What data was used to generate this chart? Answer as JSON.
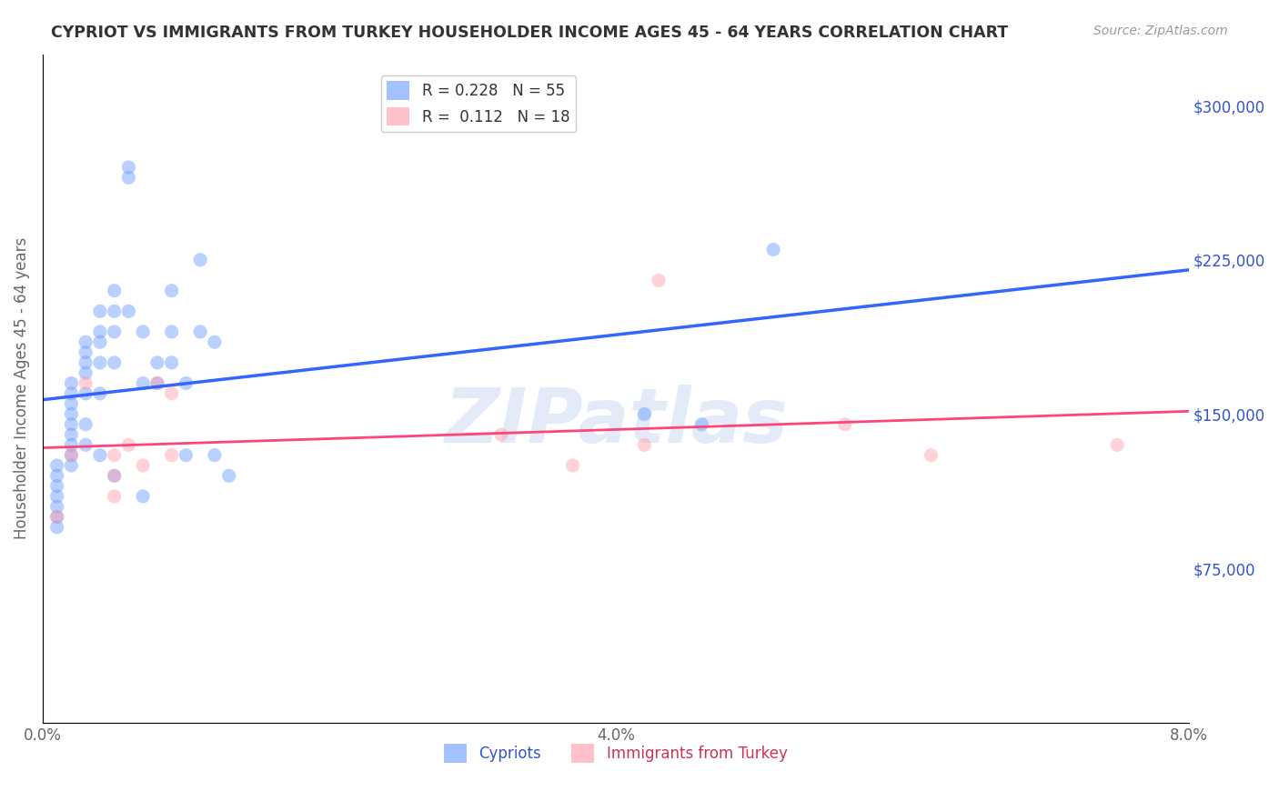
{
  "title": "CYPRIOT VS IMMIGRANTS FROM TURKEY HOUSEHOLDER INCOME AGES 45 - 64 YEARS CORRELATION CHART",
  "source": "Source: ZipAtlas.com",
  "xlabel_bottom": "",
  "ylabel": "Householder Income Ages 45 - 64 years",
  "xlim": [
    0.0,
    0.08
  ],
  "ylim": [
    0,
    325000
  ],
  "yticks": [
    0,
    75000,
    150000,
    225000,
    300000
  ],
  "ytick_labels": [
    "",
    "$75,000",
    "$150,000",
    "$225,000",
    "$300,000"
  ],
  "xtick_labels": [
    "0.0%",
    "",
    "",
    "",
    "4.0%",
    "",
    "",
    "",
    "8.0%"
  ],
  "background_color": "#ffffff",
  "grid_color": "#cccccc",
  "title_color": "#333333",
  "source_color": "#999999",
  "blue_color": "#6699ff",
  "pink_color": "#ff99aa",
  "legend_R_blue": "0.228",
  "legend_N_blue": "55",
  "legend_R_pink": "0.112",
  "legend_N_pink": "18",
  "cypriot_x": [
    0.001,
    0.001,
    0.001,
    0.001,
    0.001,
    0.001,
    0.001,
    0.002,
    0.002,
    0.002,
    0.002,
    0.002,
    0.002,
    0.002,
    0.002,
    0.002,
    0.003,
    0.003,
    0.003,
    0.003,
    0.003,
    0.003,
    0.003,
    0.004,
    0.004,
    0.004,
    0.004,
    0.004,
    0.004,
    0.005,
    0.005,
    0.005,
    0.005,
    0.005,
    0.006,
    0.006,
    0.006,
    0.007,
    0.007,
    0.007,
    0.008,
    0.008,
    0.009,
    0.009,
    0.009,
    0.01,
    0.01,
    0.011,
    0.011,
    0.012,
    0.012,
    0.013,
    0.042,
    0.046,
    0.051
  ],
  "cypriot_y": [
    125000,
    120000,
    115000,
    110000,
    105000,
    100000,
    95000,
    165000,
    160000,
    155000,
    150000,
    145000,
    140000,
    135000,
    130000,
    125000,
    185000,
    180000,
    175000,
    170000,
    160000,
    145000,
    135000,
    200000,
    190000,
    185000,
    175000,
    160000,
    130000,
    210000,
    200000,
    190000,
    175000,
    120000,
    270000,
    265000,
    200000,
    190000,
    165000,
    110000,
    175000,
    165000,
    210000,
    190000,
    175000,
    165000,
    130000,
    225000,
    190000,
    185000,
    130000,
    120000,
    150000,
    145000,
    230000
  ],
  "turkey_x": [
    0.001,
    0.002,
    0.003,
    0.005,
    0.005,
    0.005,
    0.006,
    0.007,
    0.008,
    0.009,
    0.009,
    0.032,
    0.037,
    0.042,
    0.043,
    0.056,
    0.062,
    0.075
  ],
  "turkey_y": [
    100000,
    130000,
    165000,
    130000,
    120000,
    110000,
    135000,
    125000,
    165000,
    160000,
    130000,
    140000,
    125000,
    135000,
    215000,
    145000,
    130000,
    135000
  ],
  "dot_size": 120,
  "dot_alpha": 0.45,
  "line_blue_color": "#3366ff",
  "line_pink_color": "#ff4477",
  "line_dashed_color": "#9999cc",
  "watermark_text": "ZIPatlas",
  "watermark_color": "#bbccee",
  "watermark_alpha": 0.4
}
